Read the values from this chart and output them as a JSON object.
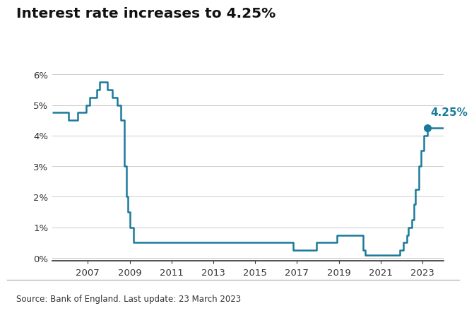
{
  "title": "Interest rate increases to 4.25%",
  "source_text": "Source: Bank of England. Last update: 23 March 2023",
  "line_color": "#1a7a9a",
  "annotation_color": "#1a7a9a",
  "background_color": "#ffffff",
  "footer_bg": "#e8e8e8",
  "ylim": [
    -0.1,
    6.5
  ],
  "yticks": [
    0,
    1,
    2,
    3,
    4,
    5,
    6
  ],
  "xlim": [
    2005.3,
    2024.0
  ],
  "xticks": [
    2007,
    2009,
    2011,
    2013,
    2015,
    2017,
    2019,
    2021,
    2023
  ],
  "annotation_text": "4.25%",
  "dot_x": 2023.22,
  "dot_y": 4.25,
  "rates": [
    [
      2005.3,
      4.75
    ],
    [
      2006.08,
      4.5
    ],
    [
      2006.5,
      4.75
    ],
    [
      2006.92,
      5.0
    ],
    [
      2007.08,
      5.25
    ],
    [
      2007.42,
      5.5
    ],
    [
      2007.58,
      5.75
    ],
    [
      2007.92,
      5.5
    ],
    [
      2008.17,
      5.25
    ],
    [
      2008.42,
      5.0
    ],
    [
      2008.58,
      4.5
    ],
    [
      2008.75,
      3.0
    ],
    [
      2008.83,
      2.0
    ],
    [
      2008.92,
      1.5
    ],
    [
      2009.0,
      1.0
    ],
    [
      2009.17,
      0.5
    ],
    [
      2016.67,
      0.5
    ],
    [
      2016.83,
      0.25
    ],
    [
      2017.75,
      0.25
    ],
    [
      2017.92,
      0.5
    ],
    [
      2018.83,
      0.5
    ],
    [
      2018.92,
      0.75
    ],
    [
      2020.08,
      0.75
    ],
    [
      2020.17,
      0.25
    ],
    [
      2020.25,
      0.1
    ],
    [
      2021.92,
      0.1
    ],
    [
      2021.92,
      0.25
    ],
    [
      2022.08,
      0.5
    ],
    [
      2022.25,
      0.75
    ],
    [
      2022.33,
      1.0
    ],
    [
      2022.5,
      1.25
    ],
    [
      2022.58,
      1.75
    ],
    [
      2022.67,
      2.25
    ],
    [
      2022.83,
      3.0
    ],
    [
      2022.92,
      3.5
    ],
    [
      2023.08,
      4.0
    ],
    [
      2023.22,
      4.25
    ],
    [
      2024.0,
      4.25
    ]
  ]
}
